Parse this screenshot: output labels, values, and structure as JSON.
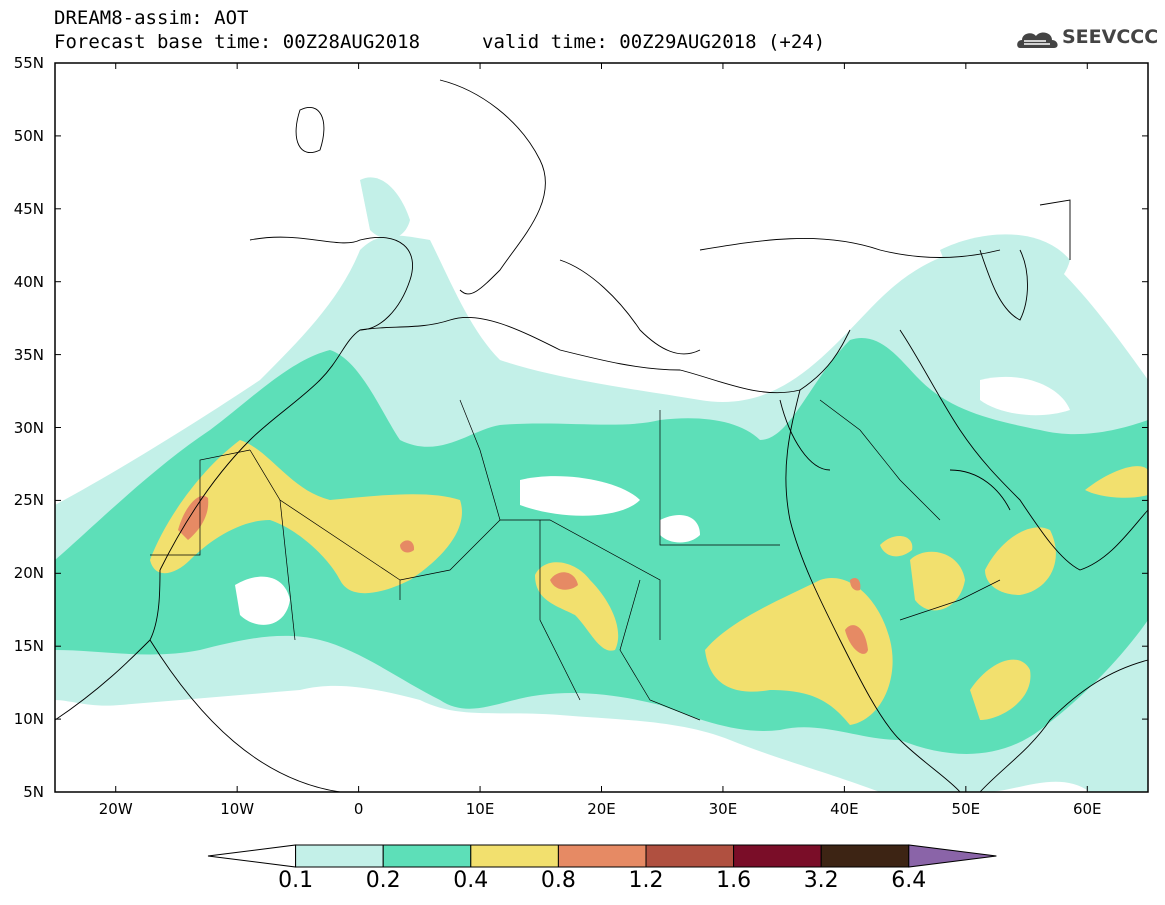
{
  "title": {
    "line1": "DREAM8-assim: AOT",
    "line2": "Forecast base time: 00Z28AUG2018",
    "valid": "valid time: 00Z29AUG2018 (+24)"
  },
  "logo": {
    "text": "SEEVCCC",
    "icon": "cloud-icon"
  },
  "axes": {
    "lat_labels": [
      "55N",
      "50N",
      "45N",
      "40N",
      "35N",
      "30N",
      "25N",
      "20N",
      "15N",
      "10N",
      "5N"
    ],
    "lon_labels": [
      "20W",
      "10W",
      "0",
      "10E",
      "20E",
      "30E",
      "40E",
      "50E",
      "60E"
    ],
    "lat_range": [
      5,
      55
    ],
    "lon_range": [
      -25,
      65
    ]
  },
  "colorbar": {
    "labels": [
      "0.1",
      "0.2",
      "0.4",
      "0.8",
      "1.2",
      "1.6",
      "3.2",
      "6.4"
    ],
    "colors": [
      "#ffffff",
      "#c3f0e8",
      "#5ddfb8",
      "#f2e06e",
      "#e68a64",
      "#b05040",
      "#7a0d28",
      "#3d2414",
      "#8a64a8"
    ]
  }
}
